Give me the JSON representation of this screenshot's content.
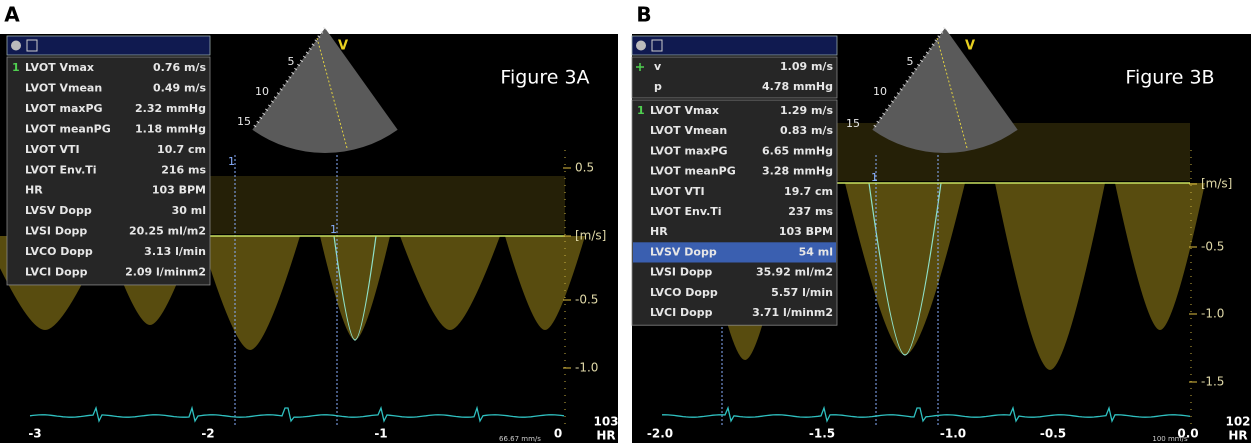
{
  "panels": [
    {
      "label": "A",
      "figure_title": "Figure 3A",
      "measurements": [
        {
          "marker": "1",
          "name": "LVOT Vmax",
          "value": "0.76 m/s"
        },
        {
          "name": "LVOT Vmean",
          "value": "0.49 m/s"
        },
        {
          "name": "LVOT maxPG",
          "value": "2.32 mmHg"
        },
        {
          "name": "LVOT meanPG",
          "value": "1.18 mmHg"
        },
        {
          "name": "LVOT VTI",
          "value": "10.7 cm"
        },
        {
          "name": "LVOT Env.Ti",
          "value": "216 ms"
        },
        {
          "name": "HR",
          "value": "103 BPM"
        },
        {
          "name": "LVSV Dopp",
          "value": "30 ml"
        },
        {
          "name": "LVSI Dopp",
          "value": "20.25 ml/m2"
        },
        {
          "name": "LVCO Dopp",
          "value": "3.13 l/min"
        },
        {
          "name": "LVCI Dopp",
          "value": "2.09 l/minm2"
        }
      ],
      "sector_depths": [
        "5",
        "10",
        "15"
      ],
      "sector_label": "V",
      "cursor_markers": [
        "1",
        "1"
      ],
      "scale_ticks": [
        "0.5",
        "[m/s]",
        "-0.5",
        "-1.0"
      ],
      "time_ticks": [
        "-3",
        "-2",
        "-1",
        "0"
      ],
      "heart_rate": "103",
      "heart_rate_unit": "HR",
      "sweep_speed": "66.67 mm/s"
    },
    {
      "label": "B",
      "figure_title": "Figure 3B",
      "cursor_readouts": [
        {
          "name": "v",
          "value": "1.09 m/s"
        },
        {
          "name": "p",
          "value": "4.78 mmHg"
        }
      ],
      "measurements": [
        {
          "marker": "1",
          "name": "LVOT Vmax",
          "value": "1.29 m/s"
        },
        {
          "name": "LVOT Vmean",
          "value": "0.83 m/s"
        },
        {
          "name": "LVOT maxPG",
          "value": "6.65 mmHg"
        },
        {
          "name": "LVOT meanPG",
          "value": "3.28 mmHg"
        },
        {
          "name": "LVOT VTI",
          "value": "19.7 cm"
        },
        {
          "name": "LVOT Env.Ti",
          "value": "237 ms"
        },
        {
          "name": "HR",
          "value": "103 BPM"
        },
        {
          "name": "LVSV Dopp",
          "value": "54 ml",
          "highlighted": true
        },
        {
          "name": "LVSI Dopp",
          "value": "35.92 ml/m2"
        },
        {
          "name": "LVCO Dopp",
          "value": "5.57 l/min"
        },
        {
          "name": "LVCI Dopp",
          "value": "3.71 l/minm2"
        }
      ],
      "sector_depths": [
        "5",
        "10",
        "15"
      ],
      "sector_label": "V",
      "cursor_markers": [
        "1"
      ],
      "scale_ticks": [
        "[m/s]",
        "-0.5",
        "-1.0",
        "-1.5"
      ],
      "time_ticks": [
        "-2.0",
        "-1.5",
        "-1.0",
        "-0.5",
        "0.0"
      ],
      "heart_rate": "102",
      "heart_rate_unit": "HR",
      "sweep_speed": "100 mm/s"
    }
  ]
}
